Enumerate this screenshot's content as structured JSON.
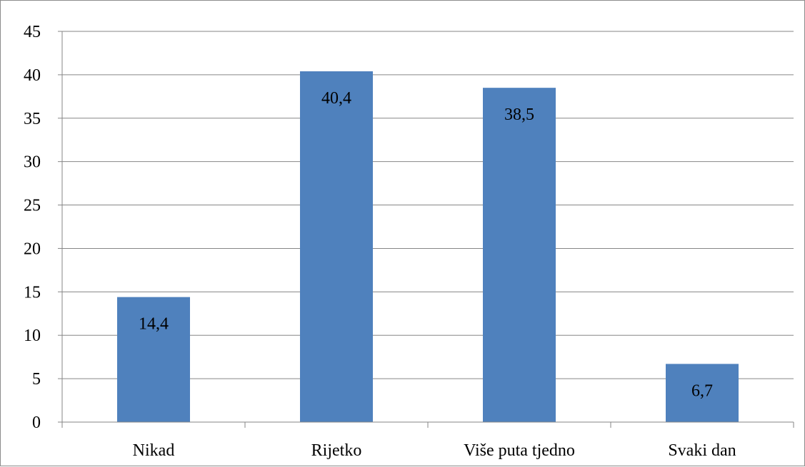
{
  "chart_data": {
    "type": "bar",
    "categories": [
      "Nikad",
      "Rijetko",
      "Više puta tjedno",
      "Svaki dan"
    ],
    "values": [
      14.4,
      40.4,
      38.5,
      6.7
    ],
    "data_labels": [
      "14,4",
      "40,4",
      "38,5",
      "6,7"
    ],
    "title": "",
    "xlabel": "",
    "ylabel": "",
    "ylim": [
      0,
      45
    ],
    "yticks": [
      0,
      5,
      10,
      15,
      20,
      25,
      30,
      35,
      40,
      45
    ],
    "grid": true,
    "legend": "none",
    "bar_color": "#4f81bd",
    "grid_color": "#868686",
    "axis_color": "#868686"
  }
}
